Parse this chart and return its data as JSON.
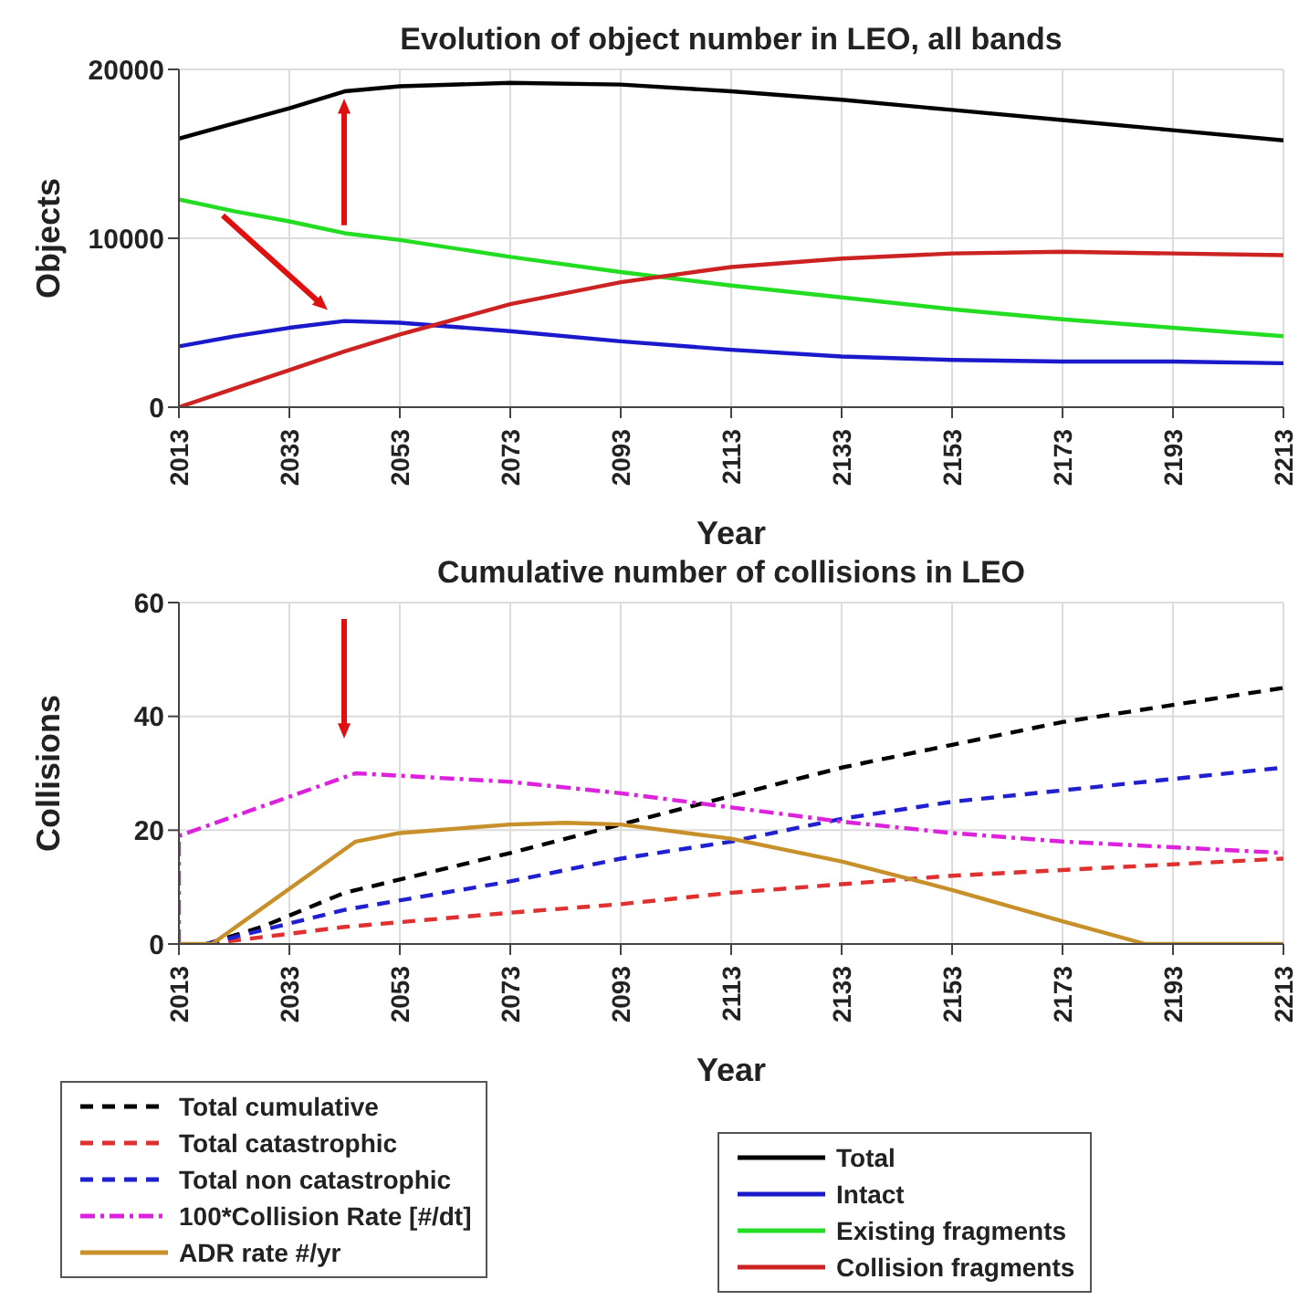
{
  "chart_data": [
    {
      "type": "line",
      "title": "Evolution of object number in LEO, all bands",
      "xlabel": "Year",
      "ylabel": "Objects",
      "xlim": [
        2013,
        2213
      ],
      "xticks": [
        2013,
        2033,
        2053,
        2073,
        2093,
        2113,
        2133,
        2153,
        2173,
        2193,
        2213
      ],
      "ylim": [
        0,
        20000
      ],
      "yticks": [
        0,
        10000,
        20000
      ],
      "grid": true,
      "legend": "bottom right",
      "line_style": "solid",
      "marker": "none",
      "x": [
        2013,
        2023,
        2033,
        2043,
        2053,
        2073,
        2093,
        2113,
        2133,
        2153,
        2173,
        2193,
        2213
      ],
      "series": [
        {
          "name": "Total",
          "color": "#000000",
          "values": [
            15900,
            16800,
            17700,
            18700,
            19000,
            19200,
            19100,
            18700,
            18200,
            17600,
            17000,
            16400,
            15800
          ]
        },
        {
          "name": "Intact",
          "color": "#1a1acc",
          "values": [
            3600,
            4200,
            4700,
            5100,
            5000,
            4500,
            3900,
            3400,
            3000,
            2800,
            2700,
            2700,
            2600
          ]
        },
        {
          "name": "Existing fragments",
          "color": "#22dd22",
          "values": [
            12300,
            11600,
            11000,
            10300,
            9900,
            8900,
            8000,
            7200,
            6500,
            5800,
            5200,
            4700,
            4200
          ]
        },
        {
          "name": "Collision fragments",
          "color": "#cc2222",
          "values": [
            0,
            1100,
            2200,
            3300,
            4300,
            6100,
            7400,
            8300,
            8800,
            9100,
            9200,
            9100,
            9000
          ]
        }
      ]
    },
    {
      "type": "line",
      "title": "Cumulative number of collisions in LEO",
      "xlabel": "Year",
      "ylabel": "Collisions",
      "xlim": [
        2013,
        2213
      ],
      "xticks": [
        2013,
        2033,
        2053,
        2073,
        2093,
        2113,
        2133,
        2153,
        2173,
        2193,
        2213
      ],
      "ylim": [
        0,
        60
      ],
      "yticks": [
        0,
        20,
        40,
        60
      ],
      "grid": true,
      "legend": "bottom left",
      "marker": "none",
      "series": [
        {
          "name": "Total cumulative",
          "color": "#000000",
          "line_style": "dashed",
          "x": [
            2018,
            2028,
            2043,
            2073,
            2093,
            2113,
            2133,
            2153,
            2173,
            2193,
            2213
          ],
          "values": [
            0,
            3,
            9,
            16,
            21,
            26,
            31,
            35,
            39,
            42,
            45
          ]
        },
        {
          "name": "Total catastrophic",
          "color": "#e03030",
          "line_style": "dashed",
          "x": [
            2018,
            2043,
            2073,
            2093,
            2113,
            2133,
            2153,
            2173,
            2193,
            2213
          ],
          "values": [
            0,
            3,
            5.5,
            7,
            9,
            10.5,
            12,
            13,
            14,
            15
          ]
        },
        {
          "name": "Total non catastrophic",
          "color": "#2020d0",
          "line_style": "dashed",
          "x": [
            2018,
            2043,
            2073,
            2093,
            2113,
            2133,
            2153,
            2173,
            2193,
            2213
          ],
          "values": [
            0,
            6,
            11,
            15,
            18,
            22,
            25,
            27,
            29,
            31
          ]
        },
        {
          "name": "100*Collision Rate [#/dt]",
          "color": "#dd22dd",
          "line_style": "dashdot",
          "x": [
            2013,
            2013,
            2045,
            2073,
            2093,
            2113,
            2133,
            2153,
            2173,
            2193,
            2213
          ],
          "values": [
            0,
            19,
            30,
            28.5,
            26.5,
            24,
            21.5,
            19.5,
            18,
            17,
            16
          ]
        },
        {
          "name": "ADR rate #/yr",
          "color": "#c8902a",
          "line_style": "solid",
          "x": [
            2013,
            2019,
            2045,
            2053,
            2073,
            2083,
            2093,
            2113,
            2133,
            2153,
            2173,
            2188,
            2213
          ],
          "values": [
            0,
            0,
            18,
            19.5,
            21,
            21.3,
            21,
            18.5,
            14.5,
            9.5,
            4,
            0,
            0
          ]
        }
      ]
    }
  ]
}
